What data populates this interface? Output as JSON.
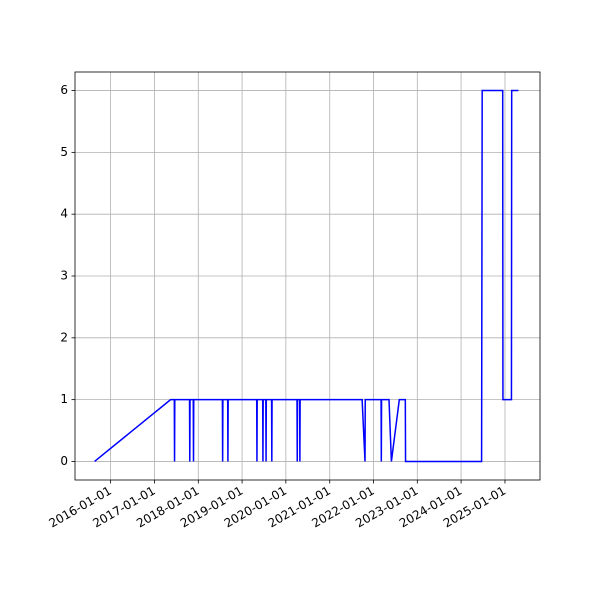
{
  "chart_data": {
    "type": "line",
    "x": [
      "2015-08-20",
      "2017-05-15",
      "2017-06-15",
      "2017-06-17",
      "2017-06-19",
      "2017-10-20",
      "2017-10-22",
      "2017-10-24",
      "2017-11-20",
      "2017-11-22",
      "2017-11-24",
      "2018-07-21",
      "2018-07-23",
      "2018-07-25",
      "2018-09-03",
      "2018-09-05",
      "2018-09-07",
      "2019-05-03",
      "2019-05-05",
      "2019-05-07",
      "2019-06-22",
      "2019-06-24",
      "2019-06-26",
      "2019-07-18",
      "2019-07-20",
      "2019-07-22",
      "2019-09-04",
      "2019-09-06",
      "2019-09-08",
      "2020-04-03",
      "2020-04-05",
      "2020-04-07",
      "2020-04-25",
      "2020-04-27",
      "2020-04-29",
      "2021-09-28",
      "2021-10-22",
      "2021-10-24",
      "2022-03-05",
      "2022-03-07",
      "2022-03-09",
      "2022-05-10",
      "2022-05-30",
      "2022-08-04",
      "2022-09-23",
      "2022-09-25",
      "2024-06-20",
      "2024-06-25",
      "2024-12-13",
      "2024-12-15",
      "2025-02-24",
      "2025-02-26",
      "2025-04-23"
    ],
    "values": [
      0,
      1,
      1,
      0,
      1,
      1,
      0,
      1,
      1,
      0,
      1,
      1,
      0,
      1,
      1,
      0,
      1,
      1,
      0,
      1,
      1,
      0,
      1,
      1,
      0,
      1,
      1,
      0,
      1,
      1,
      0,
      1,
      1,
      0,
      1,
      1,
      0,
      1,
      1,
      0,
      1,
      1,
      0,
      1,
      1,
      0,
      0,
      6,
      6,
      1,
      1,
      6,
      6
    ],
    "color": "#0000ff",
    "xlim": [
      "2015-03-10",
      "2025-10-20"
    ],
    "xticks": [
      "2016-01-01",
      "2017-01-01",
      "2018-01-01",
      "2019-01-01",
      "2020-01-01",
      "2021-01-01",
      "2022-01-01",
      "2023-01-01",
      "2024-01-01",
      "2025-01-01"
    ],
    "ylim": [
      -0.3,
      6.3
    ],
    "yticks": [
      0,
      1,
      2,
      3,
      4,
      5,
      6
    ],
    "grid": true
  }
}
